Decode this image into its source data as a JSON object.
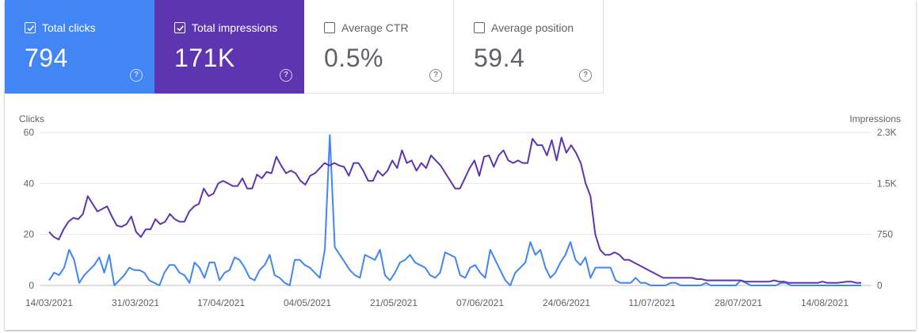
{
  "cards": [
    {
      "label": "Total clicks",
      "value": "794",
      "checked": true,
      "color": "#4285f4"
    },
    {
      "label": "Total impressions",
      "value": "171K",
      "checked": true,
      "color": "#5e35b1"
    },
    {
      "label": "Average CTR",
      "value": "0.5%",
      "checked": false
    },
    {
      "label": "Average position",
      "value": "59.4",
      "checked": false
    }
  ],
  "help_glyph": "?",
  "chart_data": {
    "type": "line",
    "left_axis_label": "Clicks",
    "right_axis_label": "Impressions",
    "left_ticks": [
      "0",
      "20",
      "40",
      "60"
    ],
    "right_ticks": [
      "0",
      "750",
      "1.5K",
      "2.3K"
    ],
    "x_ticks": [
      "14/03/2021",
      "31/03/2021",
      "17/04/2021",
      "04/05/2021",
      "21/05/2021",
      "07/06/2021",
      "24/06/2021",
      "11/07/2021",
      "28/07/2021",
      "14/08/2021"
    ],
    "left_range": [
      0,
      60
    ],
    "right_range": [
      0,
      2250
    ],
    "grid": true,
    "series": [
      {
        "name": "Clicks",
        "color": "#4285f4",
        "axis": "left",
        "values": [
          2,
          5,
          4,
          7,
          14,
          10,
          1,
          4,
          6,
          8,
          11,
          5,
          12,
          0,
          2,
          4,
          7,
          6,
          6,
          5,
          2,
          1,
          0,
          5,
          8,
          8,
          5,
          4,
          1,
          9,
          7,
          3,
          9,
          9,
          2,
          5,
          6,
          11,
          10,
          7,
          3,
          2,
          6,
          8,
          12,
          4,
          3,
          1,
          0,
          10,
          10,
          8,
          7,
          5,
          3,
          14,
          59,
          15,
          12,
          9,
          6,
          4,
          3,
          12,
          11,
          10,
          14,
          4,
          2,
          5,
          9,
          10,
          12,
          9,
          8,
          7,
          4,
          3,
          5,
          13,
          12,
          11,
          4,
          3,
          7,
          8,
          5,
          3,
          14,
          10,
          6,
          2,
          0,
          5,
          7,
          9,
          17,
          12,
          14,
          7,
          3,
          5,
          9,
          12,
          17,
          10,
          8,
          11,
          3,
          7,
          7,
          7,
          7,
          2,
          1,
          1,
          1,
          3,
          1,
          1,
          0,
          0,
          0,
          0,
          1,
          1,
          0,
          0,
          0,
          0,
          0,
          1,
          0,
          0,
          0,
          0,
          0,
          0,
          2,
          1,
          0,
          0,
          0,
          0,
          0,
          0,
          1,
          1,
          0,
          0,
          0,
          0,
          0,
          0,
          0,
          0,
          0,
          0,
          0,
          0,
          0,
          0,
          0
        ]
      },
      {
        "name": "Impressions",
        "color": "#5e35b1",
        "axis": "left",
        "values": [
          21,
          19,
          18,
          22,
          25,
          26.5,
          26,
          28,
          35,
          32,
          29,
          30,
          31,
          27,
          23.5,
          23,
          24,
          27,
          21,
          19,
          22,
          22,
          26,
          24,
          25,
          28,
          26,
          25,
          25,
          29,
          31,
          32,
          38,
          35,
          36,
          40,
          41,
          40,
          39,
          39,
          42,
          38,
          38,
          43.5,
          42,
          44.5,
          44,
          50.5,
          47,
          44,
          45,
          44,
          41,
          39.5,
          43,
          44,
          46,
          48,
          47,
          48,
          47,
          46.5,
          43,
          48,
          48,
          45,
          41,
          41,
          45,
          43,
          45,
          49,
          46,
          53,
          48,
          49,
          45,
          48,
          46,
          51,
          49,
          47,
          44,
          41,
          38,
          38,
          42,
          46,
          49,
          43,
          50.5,
          51,
          46.5,
          51,
          53,
          49,
          48,
          49,
          48,
          48,
          57.5,
          55,
          55,
          51,
          57,
          49,
          58,
          52,
          55,
          52,
          48,
          40,
          35,
          20,
          14,
          12,
          12,
          13,
          12,
          10,
          10,
          9,
          8,
          7,
          6,
          5,
          4,
          3,
          3,
          3,
          3,
          3,
          3,
          3,
          2.5,
          2.5,
          2,
          2,
          2,
          2,
          2,
          2,
          2,
          2,
          1.5,
          1.5,
          1.5,
          1.5,
          1.5,
          1.5,
          2,
          1.5,
          1.5,
          1,
          1,
          1,
          1,
          1,
          1,
          1,
          1.5,
          1,
          1,
          1,
          1.2,
          1.5,
          1.5,
          1,
          1
        ]
      }
    ]
  }
}
